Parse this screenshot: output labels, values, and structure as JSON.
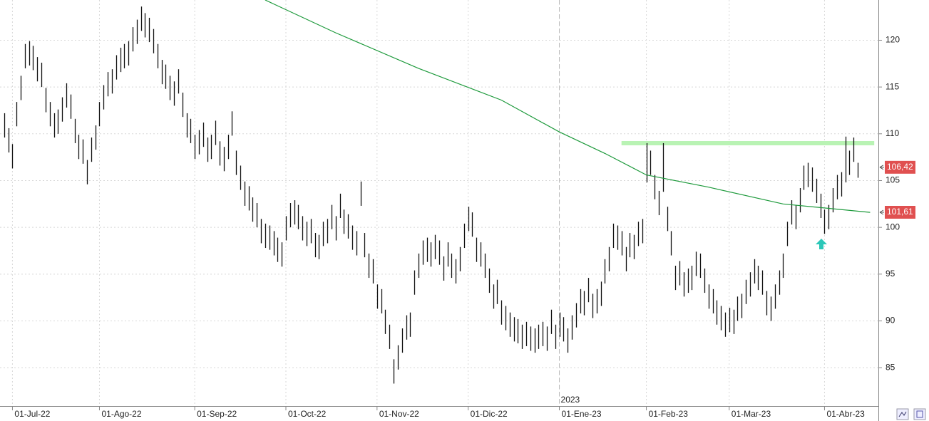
{
  "chart_data": {
    "type": "hl-bars",
    "xlim": [
      -1,
      211
    ],
    "ylim": [
      80.9,
      124.3
    ],
    "yticks": [
      85,
      90,
      95,
      100,
      105,
      110,
      115,
      120
    ],
    "xticks": [
      {
        "value": 2,
        "label": "01-Jul-22"
      },
      {
        "value": 23,
        "label": "01-Ago-22"
      },
      {
        "value": 46,
        "label": "01-Sep-22"
      },
      {
        "value": 68,
        "label": "01-Oct-22"
      },
      {
        "value": 90,
        "label": "01-Nov-22"
      },
      {
        "value": 112,
        "label": "01-Dic-22"
      },
      {
        "value": 134,
        "label": "01-Ene-23"
      },
      {
        "value": 155,
        "label": "01-Feb-23"
      },
      {
        "value": 175,
        "label": "01-Mar-23"
      },
      {
        "value": 198,
        "label": "01-Abr-23"
      }
    ],
    "grid": true,
    "bar_color": "#111111",
    "high": [
      112.2,
      110.6,
      108.9,
      113.4,
      116.2,
      119.6,
      119.9,
      119.4,
      118.2,
      117.6,
      114.9,
      113.4,
      112.2,
      112.6,
      113.9,
      115.4,
      114.2,
      111.6,
      109.9,
      109.4,
      107.2,
      109.6,
      110.9,
      113.4,
      115.2,
      116.6,
      116.9,
      118.4,
      119.2,
      119.6,
      119.9,
      121.4,
      122.2,
      123.6,
      122.9,
      122.4,
      121.2,
      119.6,
      117.9,
      117.4,
      116.2,
      115.6,
      116.9,
      114.4,
      112.2,
      111.6,
      109.9,
      110.4,
      111.2,
      109.6,
      109.9,
      111.4,
      109.2,
      108.6,
      109.9,
      112.4,
      108.2,
      106.6,
      104.9,
      104.4,
      103.2,
      102.6,
      100.9,
      100.4,
      100.2,
      99.6,
      98.9,
      98.4,
      101.2,
      102.6,
      102.9,
      102.4,
      101.2,
      100.6,
      100.9,
      99.4,
      99.2,
      100.6,
      100.9,
      102.4,
      101.2,
      103.6,
      101.9,
      101.4,
      100.2,
      99.6,
      104.9,
      99.4,
      97.2,
      96.6,
      93.9,
      93.4,
      91.2,
      89.6,
      85.9,
      87.4,
      89.2,
      90.6,
      90.9,
      95.4,
      97.2,
      98.6,
      98.9,
      98.4,
      99.2,
      98.6,
      96.9,
      98.4,
      97.2,
      96.6,
      97.9,
      100.4,
      102.2,
      101.6,
      98.9,
      98.4,
      97.2,
      95.6,
      93.9,
      94.4,
      92.2,
      91.6,
      90.9,
      90.4,
      90.2,
      89.6,
      89.9,
      89.4,
      89.2,
      89.6,
      89.9,
      89.4,
      91.2,
      89.6,
      90.9,
      90.4,
      89.2,
      90.6,
      91.9,
      93.4,
      93.2,
      94.6,
      92.9,
      93.4,
      94.2,
      96.6,
      97.9,
      100.4,
      100.2,
      99.6,
      97.9,
      99.4,
      99.2,
      100.6,
      100.9,
      109.0,
      108.2,
      105.6,
      103.9,
      109.0,
      102.2,
      99.6,
      95.9,
      96.4,
      95.2,
      95.6,
      95.9,
      97.4,
      97.2,
      95.6,
      93.9,
      93.4,
      92.2,
      91.6,
      90.9,
      91.4,
      91.2,
      92.6,
      92.9,
      94.4,
      95.2,
      96.6,
      95.9,
      95.4,
      93.2,
      92.6,
      93.9,
      95.4,
      97.2,
      100.6,
      102.9,
      102.4,
      104.2,
      106.6,
      106.9,
      106.4,
      105.2,
      103.6,
      101.9,
      102.4,
      104.2,
      105.6,
      105.9,
      109.7,
      108.2,
      109.6,
      106.9
    ],
    "low": [
      109.6,
      108.0,
      106.3,
      110.8,
      113.6,
      117.0,
      117.3,
      116.8,
      115.6,
      115.0,
      112.3,
      110.8,
      109.6,
      110.0,
      111.3,
      112.8,
      111.6,
      109.0,
      107.3,
      106.8,
      104.6,
      107.0,
      108.3,
      110.8,
      112.6,
      114.0,
      114.3,
      115.8,
      116.6,
      117.0,
      117.3,
      118.8,
      119.6,
      121.0,
      120.3,
      119.8,
      118.6,
      117.0,
      115.3,
      114.8,
      113.6,
      113.0,
      114.3,
      111.8,
      109.6,
      109.0,
      107.3,
      107.8,
      108.6,
      107.0,
      107.3,
      108.8,
      106.6,
      106.0,
      107.3,
      109.8,
      105.6,
      104.0,
      102.3,
      101.8,
      100.6,
      100.0,
      98.3,
      97.8,
      97.6,
      97.0,
      96.3,
      95.8,
      98.6,
      100.0,
      100.3,
      99.8,
      98.6,
      98.0,
      98.3,
      96.8,
      96.6,
      98.0,
      98.3,
      99.8,
      98.6,
      101.0,
      99.3,
      98.8,
      97.6,
      97.0,
      102.3,
      96.8,
      94.6,
      94.0,
      91.3,
      90.8,
      88.6,
      87.0,
      83.3,
      84.8,
      86.6,
      88.0,
      88.3,
      92.8,
      94.6,
      96.0,
      96.3,
      95.8,
      96.6,
      96.0,
      94.3,
      95.8,
      94.6,
      94.0,
      95.3,
      97.8,
      99.6,
      99.0,
      96.3,
      95.8,
      94.6,
      93.0,
      91.3,
      91.8,
      89.6,
      89.0,
      88.3,
      87.8,
      87.6,
      87.0,
      87.3,
      86.8,
      86.6,
      87.0,
      87.3,
      86.8,
      88.6,
      87.0,
      88.3,
      87.8,
      86.6,
      88.0,
      89.3,
      90.8,
      90.6,
      92.0,
      90.3,
      90.8,
      91.6,
      94.0,
      95.3,
      97.8,
      97.6,
      97.0,
      95.3,
      96.8,
      96.6,
      98.0,
      98.3,
      104.8,
      105.6,
      103.0,
      101.3,
      103.8,
      99.6,
      97.0,
      93.3,
      93.8,
      92.6,
      93.0,
      93.3,
      94.8,
      94.6,
      93.0,
      91.3,
      90.8,
      89.6,
      89.0,
      88.3,
      88.8,
      88.6,
      90.0,
      90.3,
      91.8,
      92.6,
      94.0,
      93.3,
      92.8,
      90.6,
      90.0,
      91.3,
      92.8,
      94.6,
      98.0,
      100.3,
      99.8,
      101.6,
      104.0,
      104.3,
      103.8,
      102.6,
      101.0,
      99.3,
      99.8,
      101.6,
      103.0,
      103.3,
      104.8,
      105.6,
      107.0,
      105.3
    ],
    "ma": {
      "color": "#1e9a3c",
      "x": [
        63,
        80,
        100,
        120,
        134,
        145,
        155,
        170,
        188,
        209
      ],
      "values": [
        124.3,
        120.8,
        117.0,
        113.6,
        110.2,
        107.9,
        105.6,
        104.3,
        102.5,
        101.6
      ]
    },
    "hline": {
      "value": 109,
      "x": [
        149,
        210
      ],
      "color": "#b9f3b4"
    },
    "divider": {
      "x": 134,
      "label": "2023"
    },
    "markers": [
      {
        "value": 106.42,
        "label": "106,42",
        "color": "#e05050"
      },
      {
        "value": 101.61,
        "label": "101,61",
        "color": "#e05050"
      }
    ]
  }
}
